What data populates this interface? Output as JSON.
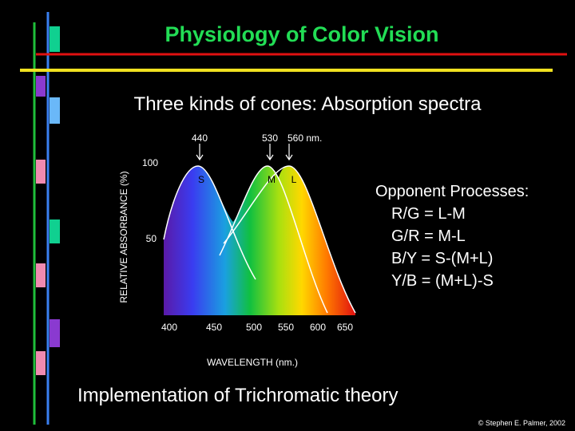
{
  "title": "Physiology of Color Vision",
  "subtitle": "Three kinds of cones: Absorption spectra",
  "figure": {
    "y_axis_label": "RELATIVE ABSORBANCE (%)",
    "x_axis_label": "WAVELENGTH (nm.)",
    "y_tick_labels": [
      "100",
      "50"
    ],
    "x_tick_labels": [
      "400",
      "450",
      "500",
      "550",
      "600",
      "650"
    ],
    "peak_labels": [
      "440",
      "530",
      "560 nm."
    ],
    "curve_labels": [
      "S",
      "M",
      "L"
    ]
  },
  "opponent": {
    "heading": "Opponent Processes:",
    "lines": [
      "R/G = L-M",
      "G/R = M-L",
      "B/Y = S-(M+L)",
      "Y/B = (M+L)-S"
    ]
  },
  "footer": "Implementation of Trichromatic theory",
  "credit": "© Stephen E. Palmer, 2002"
}
